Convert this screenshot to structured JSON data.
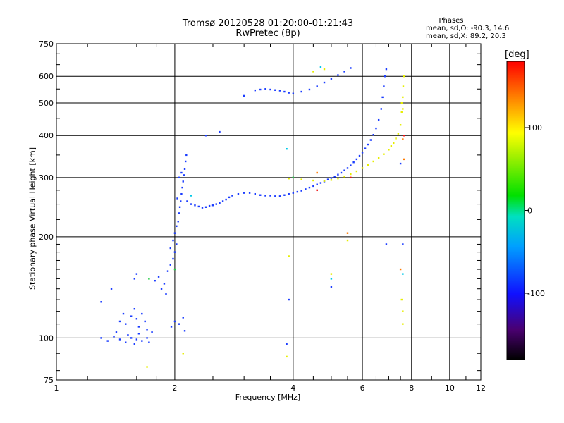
{
  "chart_data": {
    "type": "scatter",
    "title": "Tromsø 20120528 01:20:00-01:21:43",
    "subtitle": "RwPretec (8p)",
    "xlabel": "Frequency [MHz]",
    "ylabel": "Stationary phase Virtual Height [km]",
    "x_scale": "log",
    "y_scale": "log",
    "xlim": [
      1,
      12
    ],
    "ylim": [
      75,
      750
    ],
    "x_ticks": [
      "1",
      "2",
      "4",
      "6",
      "8",
      "10",
      "12"
    ],
    "y_ticks": [
      "75",
      "100",
      "200",
      "300",
      "400",
      "500",
      "600",
      "750"
    ],
    "grid": true,
    "phase_stats": {
      "header": "Phases",
      "o_line": "mean, sd,O: -90.3, 14.6",
      "x_line": "mean, sd,X:  89.2, 20.3"
    },
    "colorbar": {
      "label": "[deg]",
      "range": [
        -180,
        180
      ],
      "ticks": [
        "100",
        "0",
        "-100"
      ],
      "tick_values": [
        100,
        0,
        -100
      ]
    },
    "series": [
      {
        "name": "O",
        "color": "#1a3cff",
        "points": [
          [
            1.3,
            100
          ],
          [
            1.35,
            98
          ],
          [
            1.4,
            101
          ],
          [
            1.42,
            104
          ],
          [
            1.45,
            99
          ],
          [
            1.5,
            97
          ],
          [
            1.52,
            102
          ],
          [
            1.55,
            100
          ],
          [
            1.58,
            96
          ],
          [
            1.6,
            99
          ],
          [
            1.62,
            103
          ],
          [
            1.65,
            98
          ],
          [
            1.7,
            100
          ],
          [
            1.72,
            97
          ],
          [
            1.3,
            128
          ],
          [
            1.38,
            140
          ],
          [
            1.45,
            112
          ],
          [
            1.48,
            118
          ],
          [
            1.5,
            110
          ],
          [
            1.55,
            116
          ],
          [
            1.58,
            122
          ],
          [
            1.6,
            114
          ],
          [
            1.62,
            108
          ],
          [
            1.65,
            118
          ],
          [
            1.68,
            112
          ],
          [
            1.7,
            106
          ],
          [
            1.75,
            104
          ],
          [
            1.58,
            150
          ],
          [
            1.6,
            155
          ],
          [
            1.78,
            148
          ],
          [
            1.82,
            152
          ],
          [
            1.85,
            140
          ],
          [
            1.88,
            145
          ],
          [
            1.9,
            135
          ],
          [
            1.92,
            158
          ],
          [
            1.95,
            165
          ],
          [
            1.98,
            172
          ],
          [
            2.0,
            180
          ],
          [
            2.02,
            190
          ],
          [
            1.95,
            185
          ],
          [
            1.98,
            195
          ],
          [
            2.0,
            205
          ],
          [
            2.02,
            215
          ],
          [
            2.04,
            222
          ],
          [
            2.05,
            235
          ],
          [
            2.06,
            245
          ],
          [
            2.07,
            255
          ],
          [
            2.08,
            268
          ],
          [
            2.09,
            280
          ],
          [
            2.1,
            292
          ],
          [
            2.11,
            305
          ],
          [
            2.12,
            318
          ],
          [
            2.13,
            335
          ],
          [
            2.14,
            350
          ],
          [
            2.05,
            300
          ],
          [
            2.08,
            310
          ],
          [
            2.03,
            260
          ],
          [
            1.96,
            108
          ],
          [
            2.0,
            112
          ],
          [
            2.05,
            110
          ],
          [
            2.1,
            115
          ],
          [
            2.12,
            105
          ],
          [
            2.15,
            255
          ],
          [
            2.2,
            250
          ],
          [
            2.25,
            248
          ],
          [
            2.3,
            246
          ],
          [
            2.35,
            244
          ],
          [
            2.4,
            245
          ],
          [
            2.45,
            247
          ],
          [
            2.5,
            248
          ],
          [
            2.55,
            250
          ],
          [
            2.6,
            252
          ],
          [
            2.65,
            255
          ],
          [
            2.7,
            258
          ],
          [
            2.75,
            262
          ],
          [
            2.8,
            265
          ],
          [
            2.9,
            268
          ],
          [
            3.0,
            270
          ],
          [
            3.1,
            270
          ],
          [
            3.2,
            268
          ],
          [
            3.3,
            266
          ],
          [
            3.4,
            265
          ],
          [
            3.5,
            265
          ],
          [
            3.6,
            264
          ],
          [
            3.7,
            264
          ],
          [
            3.8,
            266
          ],
          [
            3.9,
            268
          ],
          [
            4.0,
            270
          ],
          [
            4.1,
            272
          ],
          [
            4.2,
            274
          ],
          [
            4.3,
            277
          ],
          [
            4.4,
            280
          ],
          [
            4.5,
            283
          ],
          [
            4.6,
            286
          ],
          [
            4.7,
            289
          ],
          [
            4.8,
            292
          ],
          [
            4.9,
            296
          ],
          [
            5.0,
            299
          ],
          [
            5.1,
            302
          ],
          [
            5.2,
            306
          ],
          [
            5.3,
            310
          ],
          [
            5.4,
            315
          ],
          [
            5.5,
            320
          ],
          [
            5.6,
            326
          ],
          [
            5.7,
            333
          ],
          [
            5.8,
            340
          ],
          [
            5.9,
            348
          ],
          [
            6.0,
            356
          ],
          [
            6.1,
            366
          ],
          [
            6.2,
            376
          ],
          [
            6.3,
            388
          ],
          [
            6.4,
            402
          ],
          [
            6.5,
            420
          ],
          [
            6.6,
            445
          ],
          [
            6.7,
            480
          ],
          [
            6.75,
            520
          ],
          [
            6.8,
            560
          ],
          [
            6.85,
            600
          ],
          [
            6.9,
            630
          ],
          [
            7.5,
            330
          ],
          [
            7.6,
            190
          ],
          [
            6.9,
            190
          ],
          [
            2.4,
            400
          ],
          [
            2.6,
            410
          ],
          [
            3.0,
            525
          ],
          [
            3.2,
            545
          ],
          [
            3.3,
            548
          ],
          [
            3.4,
            550
          ],
          [
            3.5,
            548
          ],
          [
            3.6,
            546
          ],
          [
            3.7,
            544
          ],
          [
            3.8,
            540
          ],
          [
            3.9,
            536
          ],
          [
            4.0,
            533
          ],
          [
            4.2,
            540
          ],
          [
            4.4,
            548
          ],
          [
            4.6,
            560
          ],
          [
            4.8,
            575
          ],
          [
            5.0,
            590
          ],
          [
            5.2,
            605
          ],
          [
            5.4,
            620
          ],
          [
            5.6,
            635
          ],
          [
            3.85,
            96
          ],
          [
            5.0,
            142
          ],
          [
            3.9,
            130
          ]
        ]
      },
      {
        "name": "X",
        "color": "#e6ee00",
        "points": [
          [
            3.9,
            298
          ],
          [
            4.2,
            296
          ],
          [
            4.5,
            294
          ],
          [
            4.8,
            293
          ],
          [
            5.0,
            295
          ],
          [
            5.2,
            298
          ],
          [
            5.4,
            302
          ],
          [
            5.6,
            307
          ],
          [
            5.8,
            313
          ],
          [
            6.0,
            320
          ],
          [
            6.2,
            327
          ],
          [
            6.4,
            335
          ],
          [
            6.6,
            343
          ],
          [
            6.8,
            352
          ],
          [
            7.0,
            363
          ],
          [
            7.1,
            372
          ],
          [
            7.2,
            380
          ],
          [
            7.3,
            392
          ],
          [
            7.4,
            405
          ],
          [
            7.5,
            430
          ],
          [
            7.55,
            470
          ],
          [
            7.6,
            520
          ],
          [
            7.62,
            560
          ],
          [
            7.65,
            600
          ],
          [
            7.6,
            480
          ],
          [
            7.55,
            500
          ],
          [
            1.7,
            82
          ],
          [
            2.1,
            90
          ],
          [
            3.85,
            88
          ],
          [
            3.9,
            175
          ],
          [
            5.0,
            155
          ],
          [
            5.5,
            195
          ],
          [
            7.6,
            110
          ],
          [
            7.6,
            120
          ],
          [
            7.55,
            130
          ],
          [
            4.5,
            620
          ],
          [
            4.8,
            630
          ]
        ]
      },
      {
        "name": "",
        "color": "#ff7a00",
        "points": [
          [
            5.5,
            205
          ],
          [
            7.6,
            390
          ],
          [
            7.65,
            340
          ],
          [
            4.6,
            310
          ],
          [
            7.5,
            160
          ]
        ]
      },
      {
        "name": "",
        "color": "#22cc44",
        "points": [
          [
            1.72,
            150
          ],
          [
            2.0,
            160
          ],
          [
            4.0,
            300
          ]
        ]
      },
      {
        "name": "",
        "color": "#00c8e8",
        "points": [
          [
            3.85,
            365
          ],
          [
            4.7,
            640
          ],
          [
            7.6,
            155
          ],
          [
            2.2,
            265
          ],
          [
            5.0,
            150
          ]
        ]
      },
      {
        "name": "",
        "color": "#ee1111",
        "points": [
          [
            7.65,
            400
          ],
          [
            4.6,
            275
          ],
          [
            5.6,
            300
          ]
        ]
      }
    ]
  }
}
